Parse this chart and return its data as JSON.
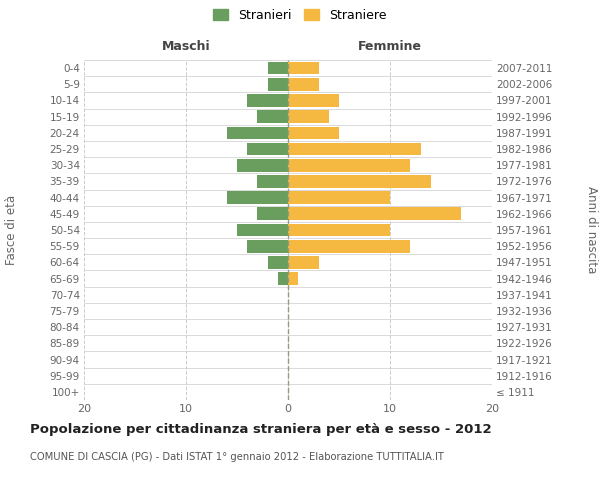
{
  "age_groups": [
    "100+",
    "95-99",
    "90-94",
    "85-89",
    "80-84",
    "75-79",
    "70-74",
    "65-69",
    "60-64",
    "55-59",
    "50-54",
    "45-49",
    "40-44",
    "35-39",
    "30-34",
    "25-29",
    "20-24",
    "15-19",
    "10-14",
    "5-9",
    "0-4"
  ],
  "birth_years": [
    "≤ 1911",
    "1912-1916",
    "1917-1921",
    "1922-1926",
    "1927-1931",
    "1932-1936",
    "1937-1941",
    "1942-1946",
    "1947-1951",
    "1952-1956",
    "1957-1961",
    "1962-1966",
    "1967-1971",
    "1972-1976",
    "1977-1981",
    "1982-1986",
    "1987-1991",
    "1992-1996",
    "1997-2001",
    "2002-2006",
    "2007-2011"
  ],
  "maschi": [
    0,
    0,
    0,
    0,
    0,
    0,
    0,
    1,
    2,
    4,
    5,
    3,
    6,
    3,
    5,
    4,
    6,
    3,
    4,
    2,
    2
  ],
  "femmine": [
    0,
    0,
    0,
    0,
    0,
    0,
    0,
    1,
    3,
    12,
    10,
    17,
    10,
    14,
    12,
    13,
    5,
    4,
    5,
    3,
    3
  ],
  "color_maschi": "#6a9e5f",
  "color_femmine": "#f5b942",
  "title": "Popolazione per cittadinanza straniera per età e sesso - 2012",
  "subtitle": "COMUNE DI CASCIA (PG) - Dati ISTAT 1° gennaio 2012 - Elaborazione TUTTITALIA.IT",
  "xlabel_left": "Maschi",
  "xlabel_right": "Femmine",
  "ylabel_left": "Fasce di età",
  "ylabel_right": "Anni di nascita",
  "legend_maschi": "Stranieri",
  "legend_femmine": "Straniere",
  "xlim": 20,
  "background_color": "#ffffff",
  "grid_color": "#cccccc"
}
